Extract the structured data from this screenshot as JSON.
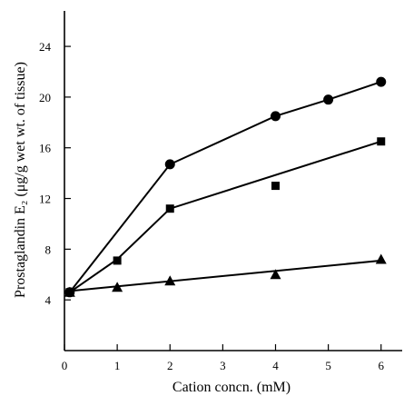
{
  "chart_data": {
    "type": "line",
    "xlabel": "Cation concn. (mM)",
    "ylabel": "Prostaglandin E₂ (μg/g wet wt. of tissue)",
    "xlim": [
      0,
      6.4
    ],
    "ylim": [
      0,
      26.8
    ],
    "x_ticks": [
      0,
      1,
      2,
      3,
      4,
      5,
      6
    ],
    "y_ticks": [
      4,
      8,
      12,
      16,
      20,
      24
    ],
    "grid": false,
    "series": [
      {
        "marker": "circle",
        "color": "#000000",
        "points": [
          [
            0.1,
            4.6
          ],
          [
            2,
            14.7
          ],
          [
            4,
            18.5
          ],
          [
            5,
            19.8
          ],
          [
            6,
            21.2
          ]
        ],
        "fit": [
          [
            0.1,
            4.6
          ],
          [
            2,
            14.7
          ],
          [
            4,
            18.5
          ],
          [
            5,
            19.8
          ],
          [
            6,
            21.2
          ]
        ]
      },
      {
        "marker": "square",
        "color": "#000000",
        "points": [
          [
            0.1,
            4.6
          ],
          [
            1,
            7.1
          ],
          [
            2,
            11.2
          ],
          [
            4,
            13.0
          ],
          [
            6,
            16.5
          ]
        ],
        "fit": [
          [
            0.1,
            4.6
          ],
          [
            1,
            7.2
          ],
          [
            2,
            11.2
          ],
          [
            6,
            16.5
          ]
        ]
      },
      {
        "marker": "triangle",
        "color": "#000000",
        "points": [
          [
            0.1,
            4.6
          ],
          [
            1,
            5.0
          ],
          [
            2,
            5.5
          ],
          [
            4,
            6.0
          ],
          [
            6,
            7.2
          ]
        ],
        "fit": [
          [
            0.1,
            4.7
          ],
          [
            6,
            7.1
          ]
        ]
      }
    ]
  }
}
